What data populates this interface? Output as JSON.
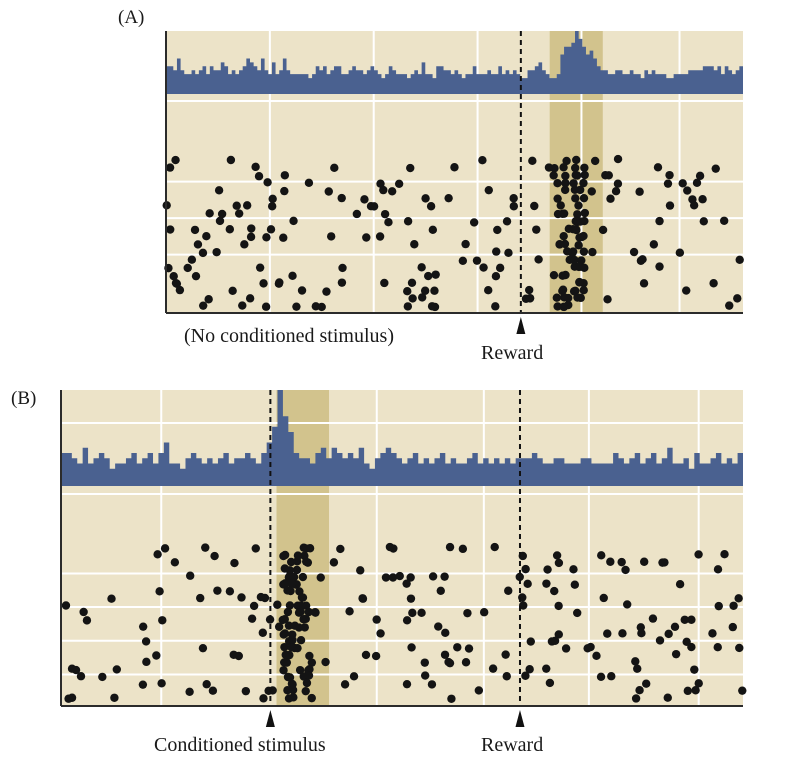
{
  "colors": {
    "background": "#ece3c8",
    "grid": "#ffffff",
    "histogram": "#4a6190",
    "shade": "#d2c38d",
    "dots": "#141414",
    "axis": "#2b2b2b"
  },
  "chart_data": [
    {
      "type": "raster+histogram",
      "panel_label": "(A)",
      "annotations": {
        "no_cs": "(No conditioned stimulus)",
        "reward": "Reward"
      },
      "events": {
        "reward": 0.615
      },
      "shaded_window": [
        0.665,
        0.757
      ],
      "x_range": [
        0,
        1
      ],
      "grid_x": [
        0.18,
        0.36,
        0.54,
        0.72,
        0.89
      ],
      "grid_y_raster": [
        0.08,
        0.33,
        0.58
      ],
      "histogram": [
        4,
        4,
        3,
        6,
        3,
        2,
        2,
        3,
        2,
        3,
        4,
        2,
        4,
        3,
        3,
        5,
        4,
        2,
        3,
        2,
        3,
        4,
        6,
        5,
        4,
        3,
        6,
        3,
        2,
        5,
        2,
        3,
        6,
        3,
        2,
        2,
        2,
        2,
        2,
        1,
        2,
        4,
        3,
        4,
        2,
        3,
        4,
        4,
        2,
        2,
        3,
        4,
        3,
        3,
        2,
        3,
        4,
        3,
        2,
        1,
        2,
        4,
        3,
        2,
        2,
        2,
        1,
        2,
        3,
        2,
        5,
        2,
        2,
        1,
        4,
        4,
        3,
        3,
        2,
        3,
        2,
        1,
        2,
        2,
        4,
        2,
        2,
        2,
        3,
        2,
        2,
        4,
        2,
        3,
        2,
        3,
        2,
        1,
        1,
        3,
        3,
        4,
        5,
        3,
        2,
        1,
        1,
        2,
        7,
        9,
        9,
        10,
        13,
        11,
        9,
        7,
        8,
        6,
        4,
        3,
        3,
        2,
        2,
        3,
        3,
        2,
        2,
        3,
        2,
        2,
        1,
        3,
        2,
        3,
        2,
        2,
        2,
        1,
        1,
        2,
        2,
        2,
        2,
        3,
        3,
        3,
        3,
        4,
        4,
        4,
        3,
        4,
        2,
        4,
        3,
        2,
        3,
        4
      ],
      "n_trials": 20
    },
    {
      "type": "raster+histogram",
      "panel_label": "(B)",
      "annotations": {
        "cs": "Conditioned stimulus",
        "reward": "Reward"
      },
      "events": {
        "cs": 0.307,
        "reward": 0.673
      },
      "shaded_window": [
        0.316,
        0.393
      ],
      "x_range": [
        0,
        1
      ],
      "grid_x": [
        0.147,
        0.463,
        0.62,
        0.774,
        0.935
      ],
      "grid_y_raster": [
        0.103,
        0.327,
        0.552,
        0.777
      ],
      "histogram": [
        4,
        4,
        3,
        2,
        5,
        2,
        3,
        4,
        3,
        1,
        2,
        2,
        3,
        4,
        2,
        3,
        4,
        2,
        4,
        6,
        2,
        2,
        1,
        3,
        4,
        3,
        2,
        3,
        2,
        3,
        4,
        2,
        3,
        3,
        4,
        3,
        2,
        4,
        6,
        9,
        16,
        11,
        8,
        4,
        3,
        3,
        2,
        4,
        5,
        3,
        5,
        4,
        3,
        4,
        3,
        5,
        2,
        1,
        3,
        4,
        5,
        4,
        3,
        2,
        3,
        4,
        2,
        3,
        2,
        3,
        4,
        2,
        3,
        2,
        2,
        3,
        4,
        2,
        3,
        2,
        3,
        2,
        3,
        2,
        3,
        3,
        3,
        4,
        3,
        2,
        2,
        3,
        3,
        2,
        2,
        2,
        3,
        3,
        2,
        2,
        2,
        2,
        4,
        3,
        2,
        3,
        4,
        2,
        3,
        4,
        2,
        3,
        5,
        2,
        2,
        3,
        1,
        4,
        2,
        2,
        3,
        4,
        2,
        3,
        2,
        4
      ],
      "n_trials": 22
    }
  ]
}
